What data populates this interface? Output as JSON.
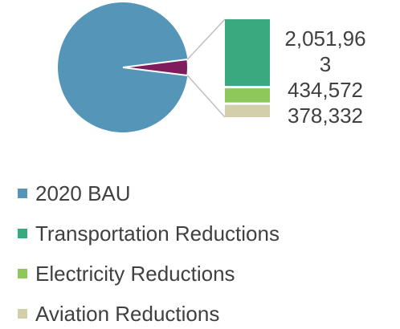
{
  "chart_data": {
    "type": "bar-of-pie",
    "categories": [
      "2020 BAU",
      "Transportation Reductions",
      "Electricity Reductions",
      "Aviation Reductions"
    ],
    "values": [
      70000000,
      2051963,
      434572,
      378332
    ],
    "value_labels": [
      null,
      "2,051,963",
      "434,572",
      "378,332"
    ],
    "colors": [
      "#5596b8",
      "#3aa97f",
      "#8ec85b",
      "#d3cfaa"
    ],
    "other_color": "#801b5e"
  }
}
